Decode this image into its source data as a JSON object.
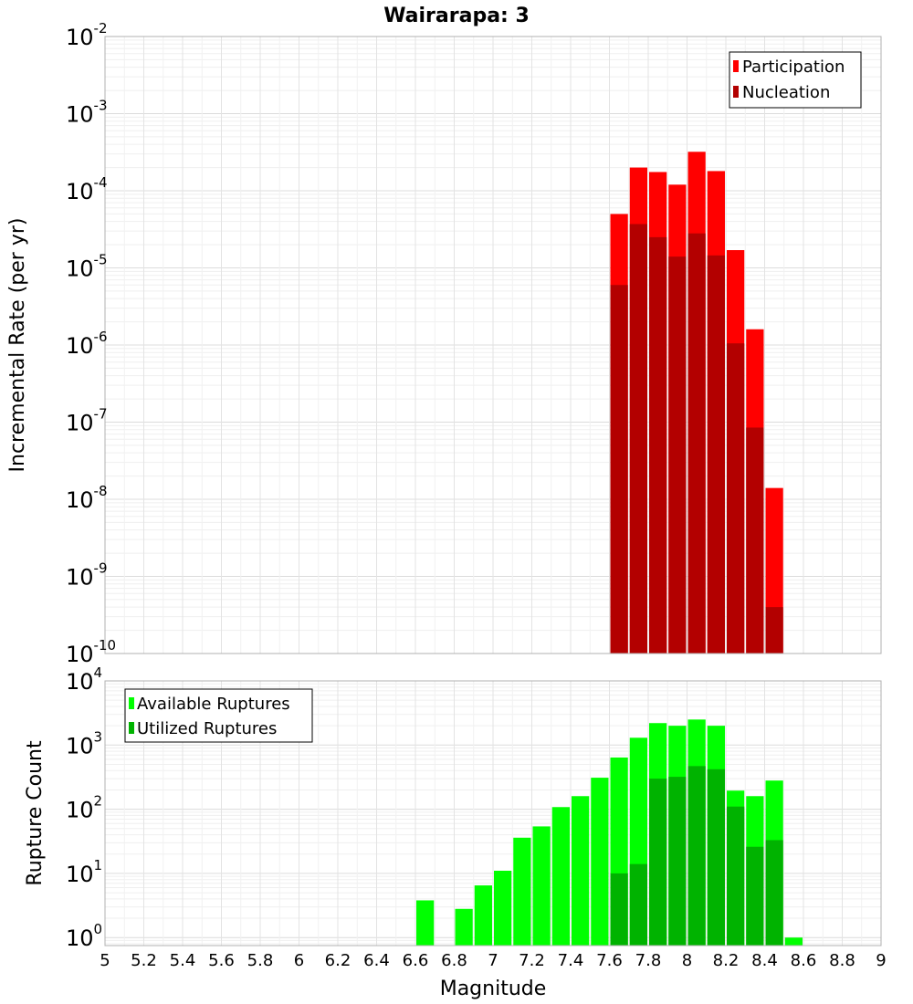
{
  "chart_data": [
    {
      "type": "bar",
      "title": "Wairarapa: 3",
      "ylabel": "Incremental Rate (per yr)",
      "xlabel": "",
      "y_scale": "log",
      "ylim": [
        1e-10,
        0.01
      ],
      "xlim": [
        5,
        9
      ],
      "bin_width": 0.1,
      "grid": true,
      "legend_position": "top-right",
      "x": [
        7.65,
        7.75,
        7.85,
        7.95,
        8.05,
        8.15,
        8.25,
        8.35,
        8.45
      ],
      "series": [
        {
          "name": "Participation",
          "color": "#ff0000",
          "values": [
            5e-05,
            0.0002,
            0.000175,
            0.00012,
            0.00032,
            0.00018,
            1.7e-05,
            1.6e-06,
            1.4e-08
          ]
        },
        {
          "name": "Nucleation",
          "color": "#b30000",
          "values": [
            6e-06,
            3.7e-05,
            2.5e-05,
            1.4e-05,
            2.8e-05,
            1.45e-05,
            1.05e-06,
            8.5e-08,
            4e-10
          ]
        }
      ]
    },
    {
      "type": "bar",
      "title": "",
      "ylabel": "Rupture Count",
      "xlabel": "Magnitude",
      "y_scale": "log",
      "ylim": [
        0.75,
        10000
      ],
      "xlim": [
        5,
        9
      ],
      "bin_width": 0.1,
      "grid": true,
      "legend_position": "top-left",
      "x_ticks": [
        "5",
        "5.2",
        "5.4",
        "5.6",
        "5.8",
        "6",
        "6.2",
        "6.4",
        "6.6",
        "6.8",
        "7",
        "7.2",
        "7.4",
        "7.6",
        "7.8",
        "8",
        "8.2",
        "8.4",
        "8.6",
        "8.8",
        "9"
      ],
      "series": [
        {
          "name": "Available Ruptures",
          "color": "#00ff00",
          "x": [
            6.65,
            6.85,
            6.95,
            7.05,
            7.15,
            7.25,
            7.35,
            7.45,
            7.55,
            7.65,
            7.75,
            7.85,
            7.95,
            8.05,
            8.15,
            8.25,
            8.35,
            8.45,
            8.55
          ],
          "values": [
            3.8,
            2.8,
            6.5,
            11,
            36,
            54,
            108,
            160,
            310,
            640,
            1300,
            2200,
            2000,
            2500,
            2000,
            195,
            160,
            280,
            1
          ]
        },
        {
          "name": "Utilized Ruptures",
          "color": "#00b300",
          "x": [
            7.65,
            7.75,
            7.85,
            7.95,
            8.05,
            8.15,
            8.25,
            8.35,
            8.45
          ],
          "values": [
            10,
            14,
            300,
            320,
            470,
            420,
            110,
            26,
            33
          ]
        }
      ]
    }
  ]
}
